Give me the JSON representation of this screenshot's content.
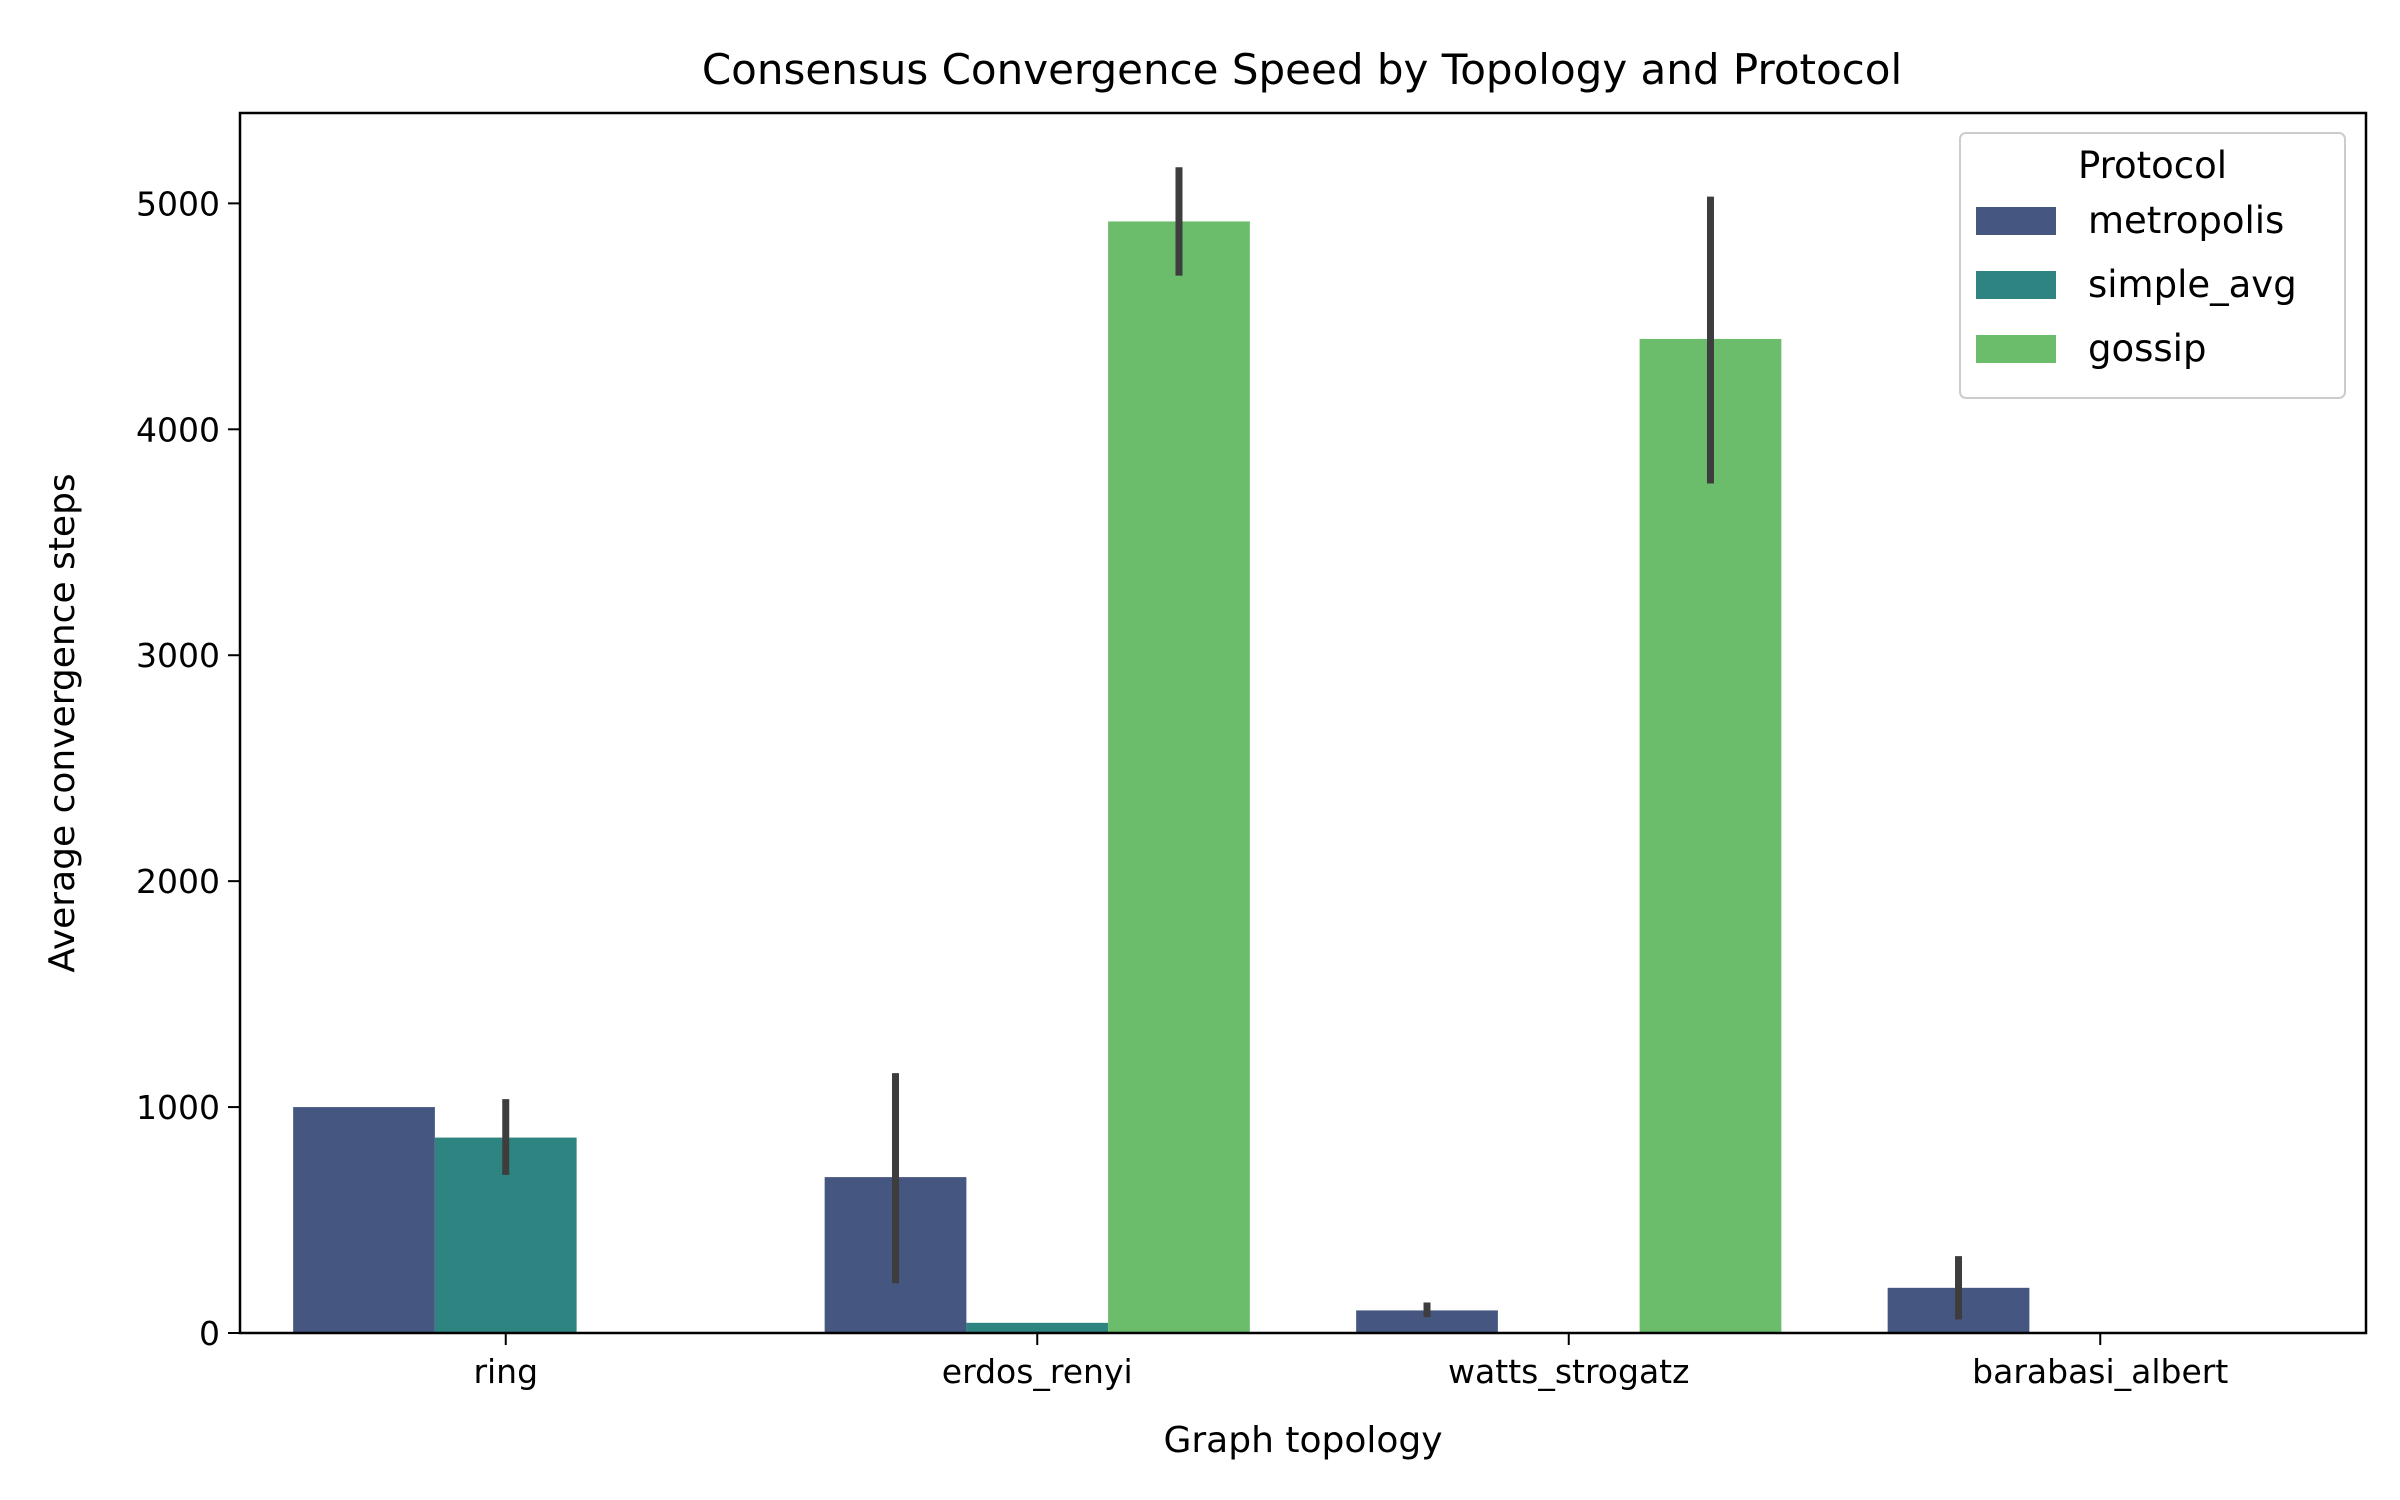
{
  "chart_data": {
    "type": "bar",
    "title": "Consensus Convergence Speed by Topology and Protocol",
    "xlabel": "Graph topology",
    "ylabel": "Average convergence steps",
    "categories": [
      "ring",
      "erdos_renyi",
      "watts_strogatz",
      "barabasi_albert"
    ],
    "ylim": [
      0,
      5400
    ],
    "yticks": [
      0,
      1000,
      2000,
      3000,
      4000,
      5000
    ],
    "ytick_labels": [
      "0",
      "1000",
      "2000",
      "3000",
      "4000",
      "5000"
    ],
    "grid": false,
    "legend": {
      "title": "Protocol",
      "placement": "top-right"
    },
    "series": [
      {
        "name": "metropolis",
        "color": "#455681",
        "values": [
          1000,
          690,
          100,
          200
        ],
        "err_low": [
          null,
          220,
          70,
          60
        ],
        "err_high": [
          null,
          1150,
          135,
          340
        ]
      },
      {
        "name": "simple_avg",
        "color": "#2e8480",
        "values": [
          865,
          45,
          null,
          null
        ],
        "err_low": [
          700,
          null,
          null,
          null
        ],
        "err_high": [
          1035,
          null,
          null,
          null
        ]
      },
      {
        "name": "gossip",
        "color": "#6bbd6b",
        "values": [
          null,
          4920,
          4400,
          null
        ],
        "err_low": [
          null,
          4680,
          3760,
          null
        ],
        "err_high": [
          null,
          5160,
          5030,
          null
        ]
      }
    ]
  }
}
